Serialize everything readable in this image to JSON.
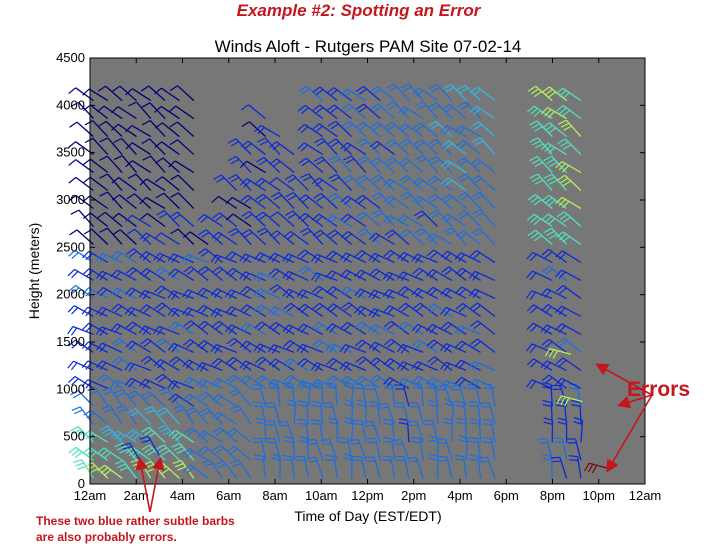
{
  "slide_title": "Example #2: Spotting an Error",
  "annotations": {
    "errors_label": "Errors",
    "note_line1": "These two blue rather subtle barbs",
    "note_line2": "are also probably errors."
  },
  "colors": {
    "plot_background": "#777777",
    "annotation_red": "#c4161c",
    "error_barb": "#7a0c0c"
  },
  "chart_data": {
    "type": "wind-barb",
    "title": "Winds Aloft - Rutgers PAM Site 07-02-14",
    "xlabel": "Time of Day (EST/EDT)",
    "ylabel": "Height (meters)",
    "xlim": [
      0,
      24
    ],
    "ylim": [
      0,
      4500
    ],
    "x_ticks": [
      0,
      2,
      4,
      6,
      8,
      10,
      12,
      14,
      16,
      18,
      20,
      22,
      24
    ],
    "x_tick_labels": [
      "12am",
      "2am",
      "4am",
      "6am",
      "8am",
      "10am",
      "12pm",
      "2pm",
      "4pm",
      "6pm",
      "8pm",
      "10pm",
      "12am"
    ],
    "y_ticks": [
      0,
      500,
      1000,
      1500,
      2000,
      2500,
      3000,
      3500,
      4000,
      4500
    ],
    "y_tick_labels": [
      "0",
      "500",
      "1000",
      "1500",
      "2000",
      "2500",
      "3000",
      "3500",
      "4000",
      "4500"
    ],
    "colormap": [
      "#00007a",
      "#0a2ad8",
      "#1d6fe0",
      "#2fb6e8",
      "#50e0c0",
      "#b0f060",
      "#f0f020"
    ],
    "data_gap_hours": [
      18.0,
      19.6
    ],
    "error_barbs_flagged": [
      {
        "time_hr": 20.8,
        "height_m": 1370
      },
      {
        "time_hr": 21.3,
        "height_m": 870
      },
      {
        "time_hr": 22.5,
        "height_m": 160
      }
    ],
    "suspect_barbs": [
      {
        "time_hr": 2.2,
        "height_m": 230
      },
      {
        "time_hr": 3.0,
        "height_m": 300
      }
    ]
  }
}
